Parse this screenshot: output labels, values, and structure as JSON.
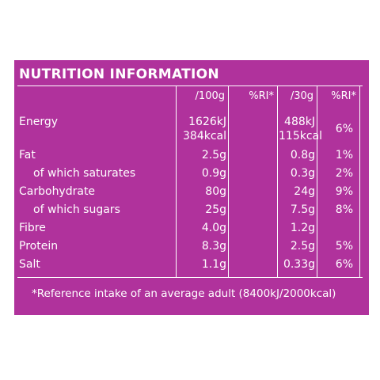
{
  "title": "NUTRITION INFORMATION",
  "headers": {
    "per100g": "/100g",
    "ri1": "%RI*",
    "per30g": "/30g",
    "ri2": "%RI*"
  },
  "rows": [
    {
      "label": "Energy",
      "v100_a": "1626kJ",
      "v100_b": "384kcal",
      "ri1": "",
      "v30_a": "488kJ",
      "v30_b": "115kcal",
      "ri2": "6%"
    },
    {
      "label": "Fat",
      "v100": "2.5g",
      "ri1": "",
      "v30": "0.8g",
      "ri2": "1%"
    },
    {
      "label": "of which saturates",
      "v100": "0.9g",
      "ri1": "",
      "v30": "0.3g",
      "ri2": "2%"
    },
    {
      "label": "Carbohydrate",
      "v100": "80g",
      "ri1": "",
      "v30": "24g",
      "ri2": "9%"
    },
    {
      "label": "of which sugars",
      "v100": "25g",
      "ri1": "",
      "v30": "7.5g",
      "ri2": "8%"
    },
    {
      "label": "Fibre",
      "v100": "4.0g",
      "ri1": "",
      "v30": "1.2g",
      "ri2": ""
    },
    {
      "label": "Protein",
      "v100": "8.3g",
      "ri1": "",
      "v30": "2.5g",
      "ri2": "5%"
    },
    {
      "label": "Salt",
      "v100": "1.1g",
      "ri1": "",
      "v30": "0.33g",
      "ri2": "6%"
    }
  ],
  "footnote": "*Reference intake of an average adult (8400kJ/2000kcal)",
  "colors": {
    "panel": "#b0329c",
    "text": "#ffffff",
    "background": "#ffffff"
  }
}
